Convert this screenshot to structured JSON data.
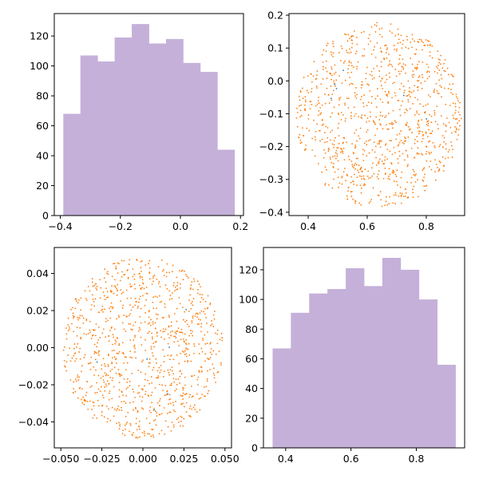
{
  "chart_data": [
    {
      "type": "histogram",
      "position": "top-left",
      "color": "#c5b0d9",
      "bins": [
        -0.39,
        -0.333,
        -0.276,
        -0.219,
        -0.162,
        -0.105,
        -0.048,
        0.009,
        0.066,
        0.123,
        0.18
      ],
      "values": [
        68,
        107,
        103,
        119,
        128,
        115,
        118,
        102,
        96,
        44
      ],
      "xlim": [
        -0.42,
        0.21
      ],
      "ylim": [
        0,
        135
      ],
      "xticks": [
        -0.4,
        -0.2,
        0.0,
        0.2
      ],
      "xtick_labels": [
        "−0.4",
        "−0.2",
        "0.0",
        "0.2"
      ],
      "yticks": [
        0,
        20,
        40,
        60,
        80,
        100,
        120
      ],
      "ytick_labels": [
        "0",
        "20",
        "40",
        "60",
        "80",
        "100",
        "120"
      ]
    },
    {
      "type": "scatter",
      "position": "top-right",
      "shape": "disk",
      "n_points": 1000,
      "center": [
        0.64,
        -0.105
      ],
      "radius_x": 0.28,
      "radius_y": 0.283,
      "color": "#ff7f0e",
      "highlight_color": "#1f77b4",
      "xlim": [
        0.335,
        0.93
      ],
      "ylim": [
        -0.41,
        0.205
      ],
      "xticks": [
        0.4,
        0.6,
        0.8
      ],
      "xtick_labels": [
        "0.4",
        "0.6",
        "0.8"
      ],
      "yticks": [
        -0.4,
        -0.3,
        -0.2,
        -0.1,
        0.0,
        0.1,
        0.2
      ],
      "ytick_labels": [
        "−0.4",
        "−0.3",
        "−0.2",
        "−0.1",
        "0.0",
        "0.1",
        "0.2"
      ]
    },
    {
      "type": "scatter",
      "position": "bottom-left",
      "shape": "disk",
      "n_points": 1000,
      "center": [
        0.0,
        0.0
      ],
      "radius_x": 0.049,
      "radius_y": 0.049,
      "color": "#ff7f0e",
      "highlight_color": "#1f77b4",
      "xlim": [
        -0.054,
        0.054
      ],
      "ylim": [
        -0.054,
        0.054
      ],
      "xticks": [
        -0.05,
        -0.025,
        0.0,
        0.025,
        0.05
      ],
      "xtick_labels": [
        "−0.050",
        "−0.025",
        "0.000",
        "0.025",
        "0.050"
      ],
      "yticks": [
        -0.04,
        -0.02,
        0.0,
        0.02,
        0.04
      ],
      "ytick_labels": [
        "−0.04",
        "−0.02",
        "0.00",
        "0.02",
        "0.04"
      ]
    },
    {
      "type": "histogram",
      "position": "bottom-right",
      "color": "#c5b0d9",
      "bins": [
        0.36,
        0.416,
        0.472,
        0.528,
        0.584,
        0.64,
        0.696,
        0.752,
        0.808,
        0.864,
        0.92
      ],
      "values": [
        67,
        91,
        104,
        107,
        121,
        109,
        128,
        120,
        100,
        56
      ],
      "xlim": [
        0.332,
        0.948
      ],
      "ylim": [
        0,
        135
      ],
      "xticks": [
        0.4,
        0.6,
        0.8
      ],
      "xtick_labels": [
        "0.4",
        "0.6",
        "0.8"
      ],
      "yticks": [
        0,
        20,
        40,
        60,
        80,
        100,
        120
      ],
      "ytick_labels": [
        "0",
        "20",
        "40",
        "60",
        "80",
        "100",
        "120"
      ]
    }
  ]
}
